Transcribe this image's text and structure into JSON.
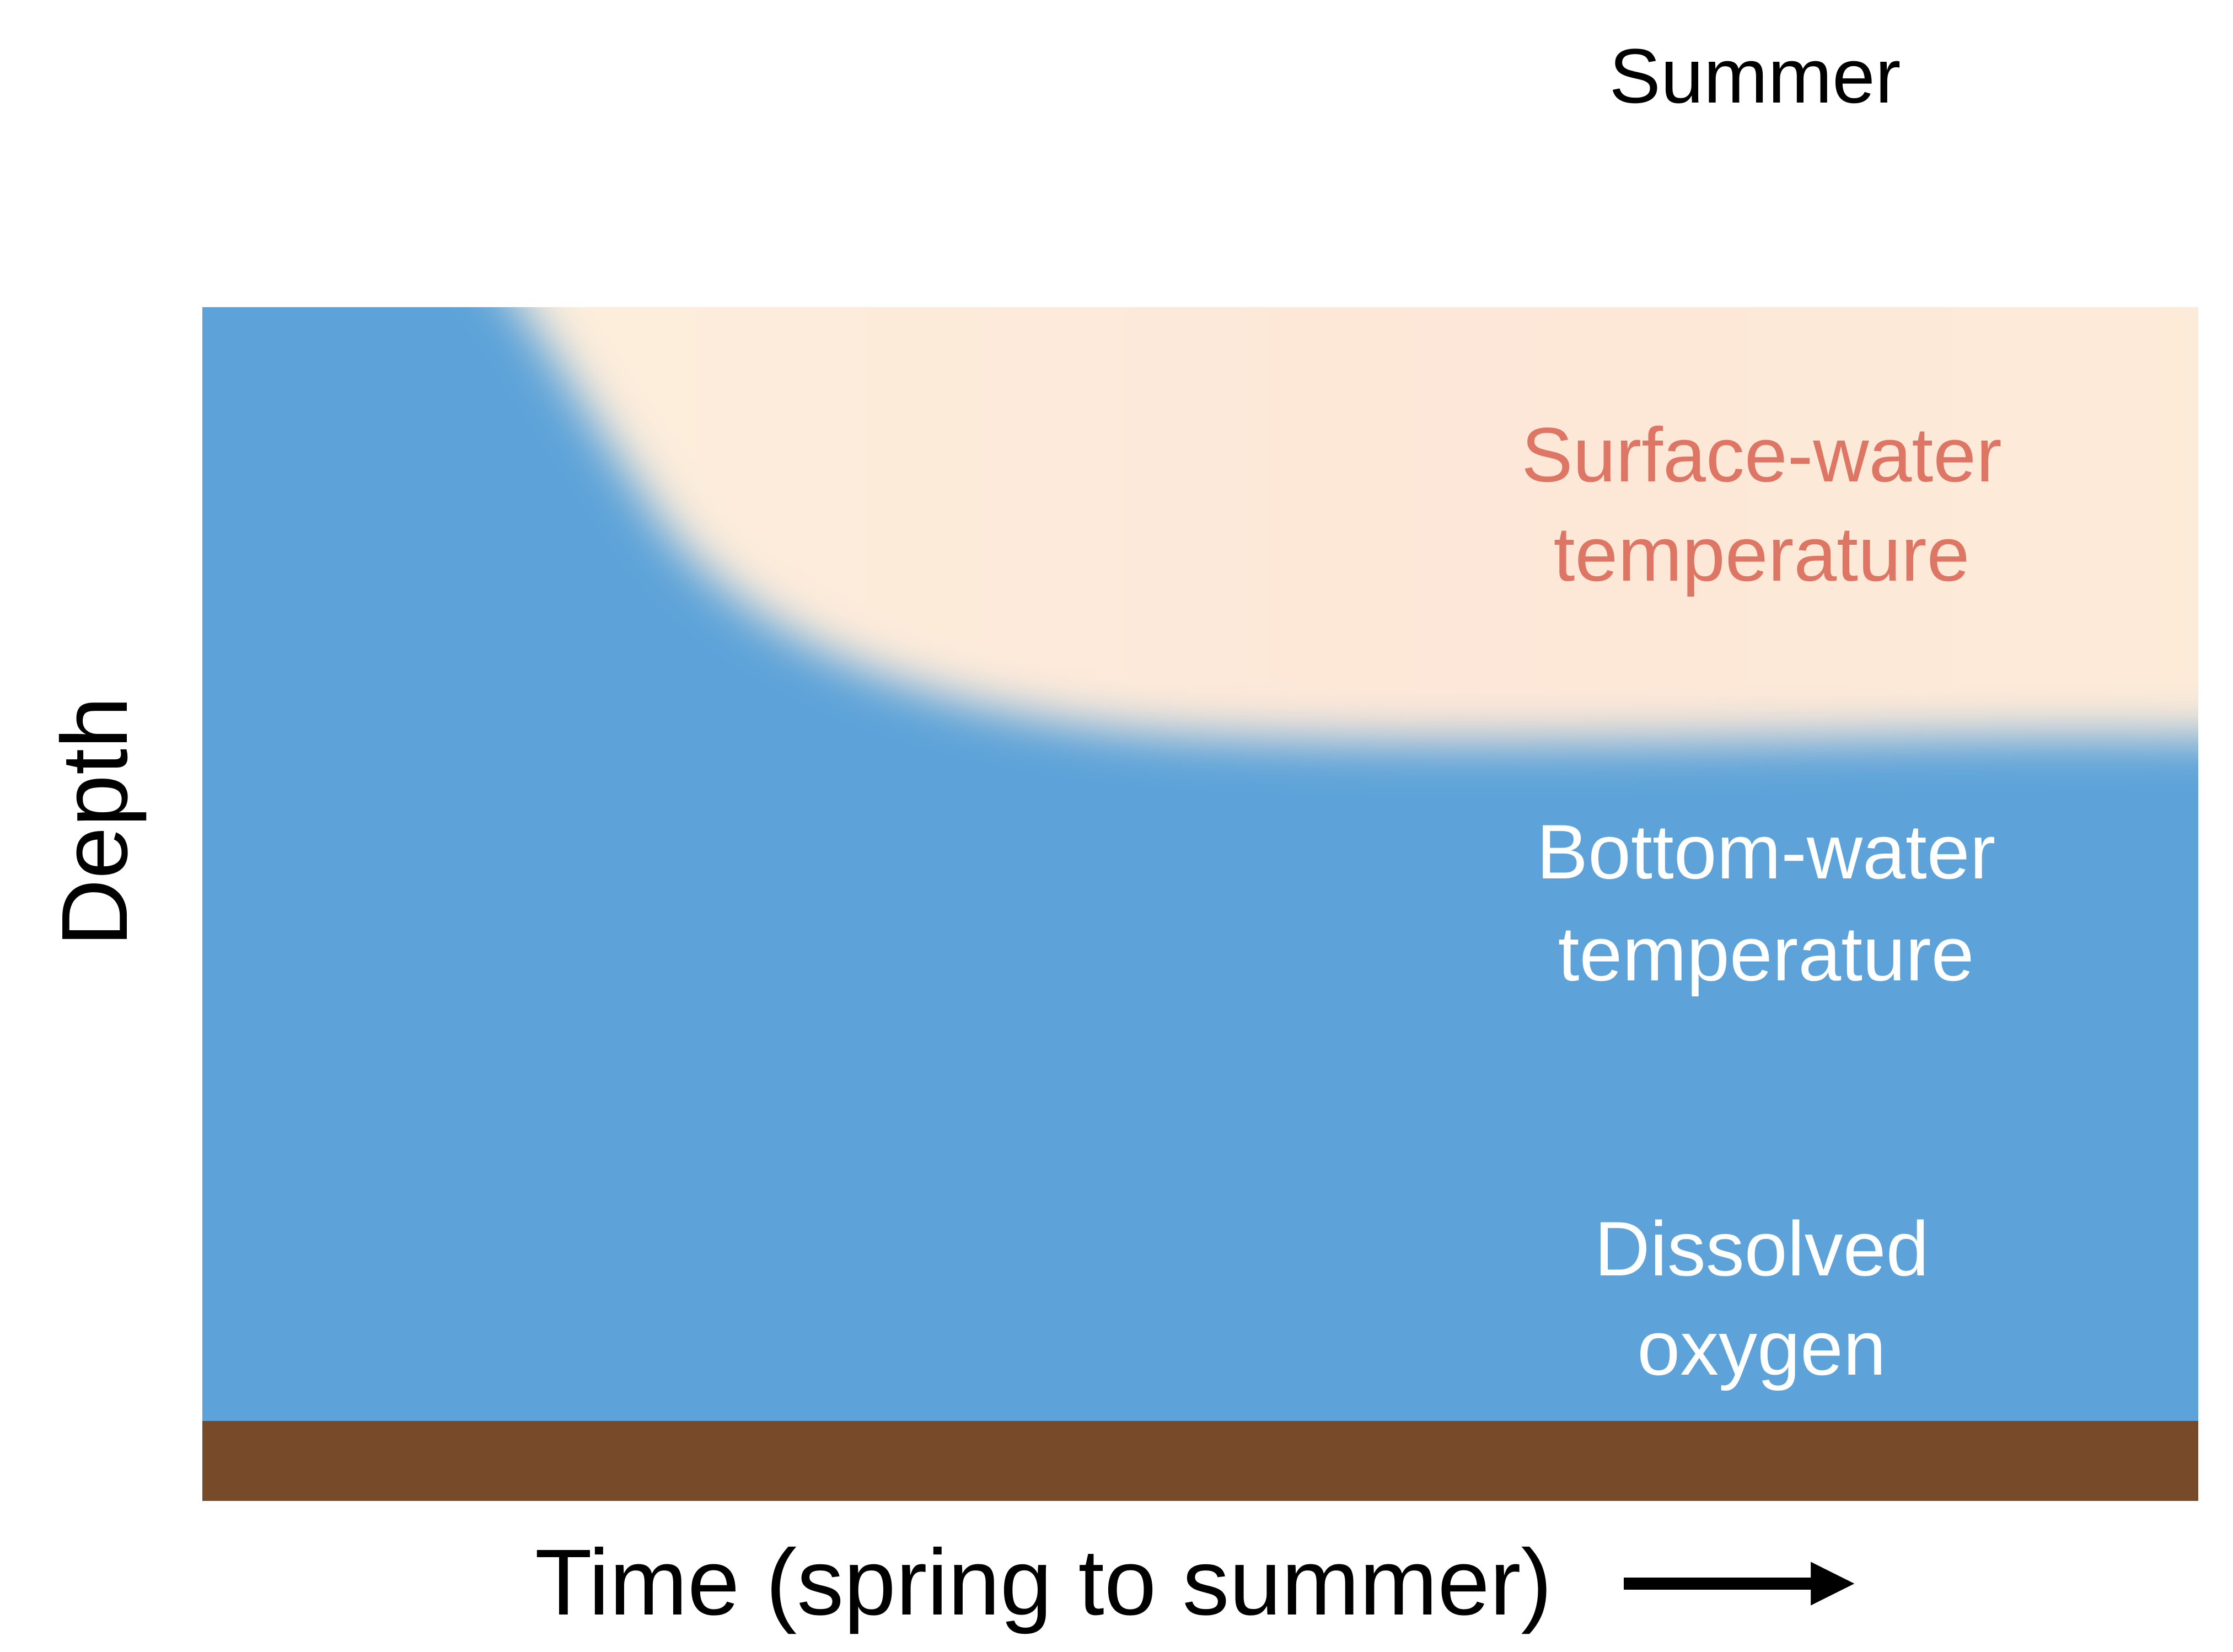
{
  "header": {
    "season_label": "Summer"
  },
  "axes": {
    "y_label": "Depth",
    "x_label": "Time (spring to summer)",
    "x_arrow_icon": "right-arrow-icon"
  },
  "layers": {
    "surface": {
      "line1": "Surface-water",
      "line2": "temperature",
      "color": "#de7665"
    },
    "bottom": {
      "line1": "Bottom-water",
      "line2": "temperature",
      "color": "#ffffff"
    },
    "oxygen": {
      "line1": "Dissolved",
      "line2": "oxygen",
      "color": "#ffffff"
    }
  },
  "colors": {
    "water": "#5da3d9",
    "warm_surface": "#fde8d6",
    "sediment": "#774b29",
    "text": "#000000"
  }
}
